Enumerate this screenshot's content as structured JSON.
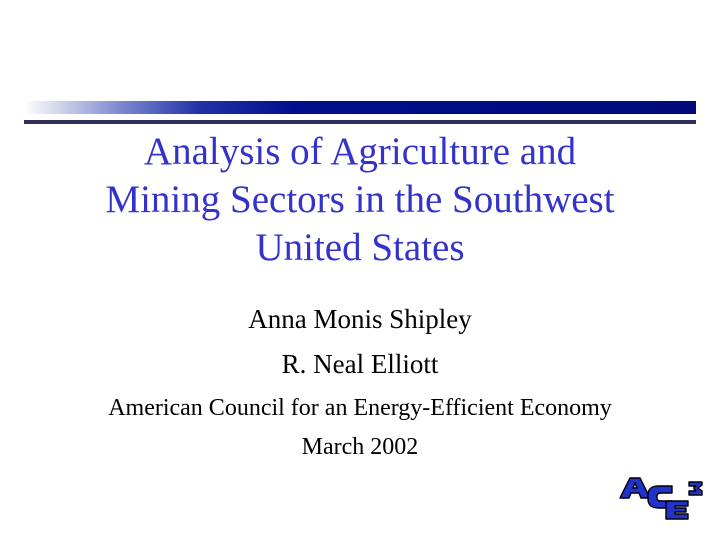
{
  "slide": {
    "title": "Analysis of Agriculture and\nMining Sectors in the Southwest\nUnited States",
    "authors": [
      "Anna Monis Shipley",
      "R. Neal Elliott"
    ],
    "organization": "American Council for an Energy-Efficient Economy",
    "date": "March 2002"
  },
  "logo": {
    "letters": [
      "A",
      "C",
      "E",
      "3"
    ],
    "fill_color": "#2233cc"
  },
  "colors": {
    "title": "#3333cc",
    "body_text": "#000000",
    "rule_dark": "#00108c",
    "rule_thin": "#30315a"
  }
}
